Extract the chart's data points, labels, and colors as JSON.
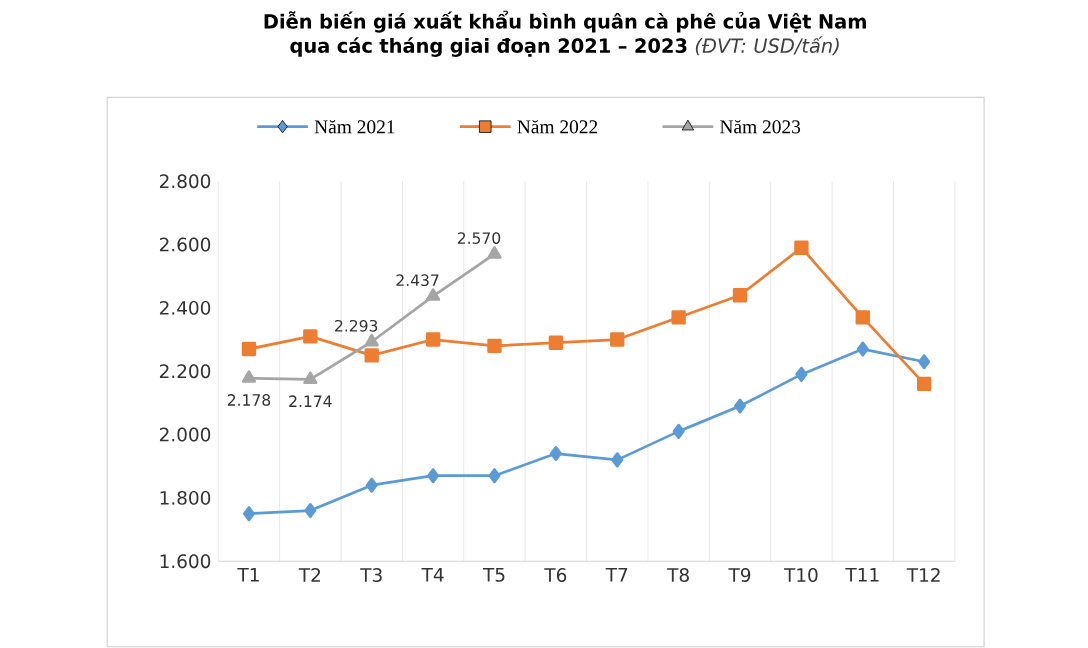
{
  "chart_data": {
    "type": "line",
    "title": "Diễn biến giá xuất khẩu bình quân cà phê của Việt Nam qua các tháng giai đoạn 2021 – 2023",
    "subtitle": "(ĐVT: USD/tấn)",
    "categories": [
      "T1",
      "T2",
      "T3",
      "T4",
      "T5",
      "T6",
      "T7",
      "T8",
      "T9",
      "T10",
      "T11",
      "T12"
    ],
    "series": [
      {
        "name": "Năm 2021",
        "color": "#5b9bd5",
        "marker": "diamond",
        "values": [
          1750,
          1760,
          1840,
          1870,
          1870,
          1940,
          1920,
          2010,
          2090,
          2190,
          2270,
          2230
        ]
      },
      {
        "name": "Năm 2022",
        "color": "#ed7d31",
        "marker": "square",
        "values": [
          2270,
          2310,
          2250,
          2300,
          2280,
          2290,
          2300,
          2370,
          2440,
          2590,
          2370,
          2160
        ]
      },
      {
        "name": "Năm 2023",
        "color": "#a5a5a5",
        "marker": "triangle",
        "values": [
          2178,
          2174,
          2293,
          2437,
          2570,
          null,
          null,
          null,
          null,
          null,
          null,
          null
        ],
        "value_labels": [
          "2.178",
          "2.174",
          "2.293",
          "2.437",
          "2.570",
          null,
          null,
          null,
          null,
          null,
          null,
          null
        ]
      }
    ],
    "ylim": [
      1600,
      2800
    ],
    "yticks": [
      {
        "value": 1600,
        "label": "1.600"
      },
      {
        "value": 1800,
        "label": "1.800"
      },
      {
        "value": 2000,
        "label": "2.000"
      },
      {
        "value": 2200,
        "label": "2.200"
      },
      {
        "value": 2400,
        "label": "2.400"
      },
      {
        "value": 2600,
        "label": "2.600"
      },
      {
        "value": 2800,
        "label": "2.800"
      }
    ],
    "grid": "x",
    "legend": "top",
    "line_style": "solid"
  }
}
